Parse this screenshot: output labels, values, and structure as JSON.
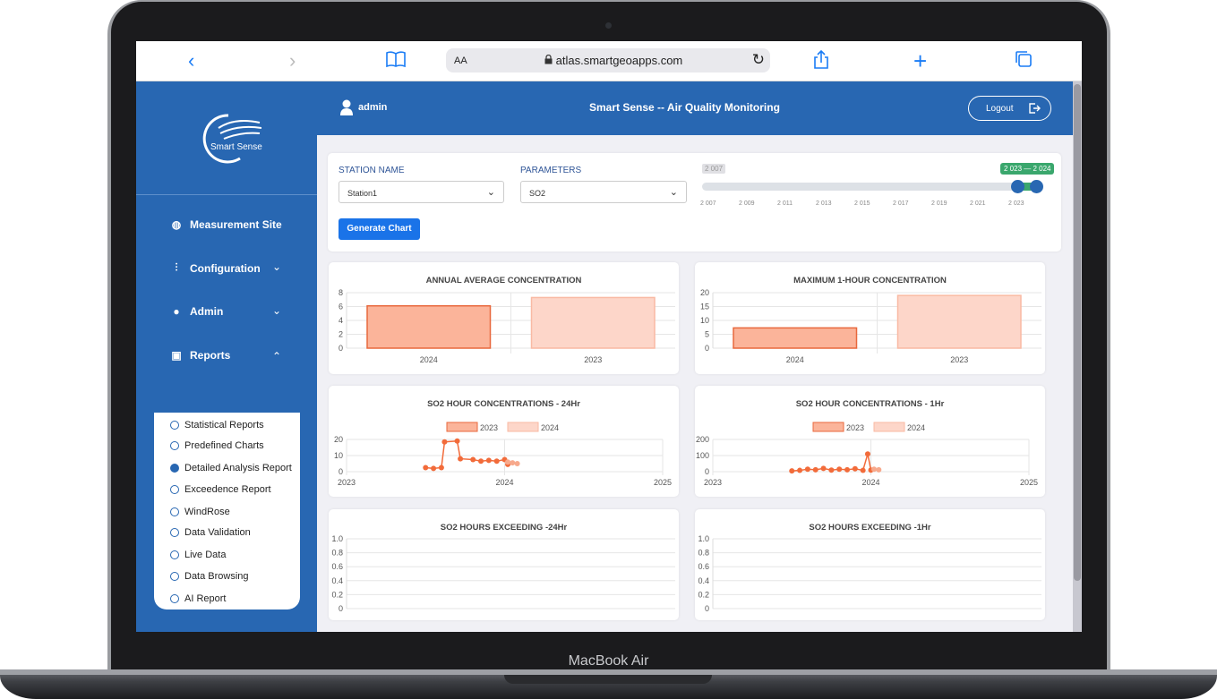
{
  "device": {
    "brand": "MacBook Air"
  },
  "browser": {
    "back": "‹",
    "forward": "›",
    "text_size": "AA",
    "url": "atlas.smartgeoapps.com",
    "icons": [
      "chevron-left-icon",
      "chevron-right-icon",
      "book-icon",
      "lock-icon",
      "reload-icon",
      "share-icon",
      "plus-icon",
      "tabs-icon"
    ]
  },
  "app": {
    "logo_text": "Smart Sense",
    "user": "admin",
    "title": "Smart Sense -- Air Quality Monitoring",
    "logout": "Logout",
    "colors": {
      "primary": "#2867b2",
      "button": "#1a73e8",
      "bar_2023": "#fbb49a",
      "bar_2024": "#fdd6c9",
      "line_2023": "#f26b3a",
      "range_badge": "#3aa76d"
    }
  },
  "sidebar": {
    "items": [
      {
        "label": "Measurement Site",
        "icon": "gauge-icon"
      },
      {
        "label": "Configuration",
        "icon": "sliders-icon"
      },
      {
        "label": "Admin",
        "icon": "user-icon"
      },
      {
        "label": "Reports",
        "icon": "report-icon"
      }
    ],
    "reports": [
      {
        "label": "Statistical Reports",
        "selected": false
      },
      {
        "label": "Predefined Charts",
        "selected": false
      },
      {
        "label": "Detailed Analysis Report",
        "selected": true
      },
      {
        "label": "Exceedence Report",
        "selected": false
      },
      {
        "label": "WindRose",
        "selected": false
      },
      {
        "label": "Data Validation",
        "selected": false
      },
      {
        "label": "Live Data",
        "selected": false
      },
      {
        "label": "Data Browsing",
        "selected": false
      },
      {
        "label": "AI Report",
        "selected": false
      }
    ]
  },
  "filters": {
    "station_label": "STATION NAME",
    "station_value": "Station1",
    "parameter_label": "PARAMETERS",
    "parameter_value": "SO2",
    "range_min_label": "2 007",
    "range_selected_label": "2 023 — 2 024",
    "range_selected": [
      2023,
      2024
    ],
    "range_ticks": [
      "2 007",
      "2 009",
      "2 011",
      "2 013",
      "2 015",
      "2 017",
      "2 019",
      "2 021",
      "2 023"
    ],
    "generate": "Generate Chart"
  },
  "charts": [
    {
      "title": "ANNUAL AVERAGE CONCENTRATION"
    },
    {
      "title": "MAXIMUM 1-HOUR CONCENTRATION"
    },
    {
      "title": "SO2 HOUR CONCENTRATIONS - 24Hr"
    },
    {
      "title": "SO2 HOUR CONCENTRATIONS - 1Hr"
    },
    {
      "title": "SO2 HOURS EXCEEDING -24Hr"
    },
    {
      "title": "SO2 HOURS EXCEEDING -1Hr"
    }
  ],
  "chart_data": [
    {
      "type": "bar",
      "categories": [
        "2024",
        "2023"
      ],
      "values": [
        6.1,
        7.3
      ],
      "ylim": [
        0,
        8
      ],
      "yticks": [
        "0",
        "2",
        "4",
        "6",
        "8"
      ]
    },
    {
      "type": "bar",
      "categories": [
        "2024",
        "2023"
      ],
      "values": [
        7.3,
        19
      ],
      "ylim": [
        0,
        20
      ],
      "yticks": [
        "0",
        "5",
        "10",
        "15",
        "20"
      ]
    },
    {
      "type": "line",
      "legend": [
        "2023",
        "2024"
      ],
      "xticks": [
        "2023",
        "2024",
        "2025"
      ],
      "xlim": [
        2023,
        2025
      ],
      "ylim": [
        0,
        20
      ],
      "yticks": [
        "0",
        "10",
        "20"
      ],
      "series": [
        {
          "name": "2023",
          "points": [
            [
              2023.5,
              2.5
            ],
            [
              2023.55,
              2
            ],
            [
              2023.6,
              2.5
            ],
            [
              2023.62,
              18.5
            ],
            [
              2023.7,
              19
            ],
            [
              2023.72,
              8
            ],
            [
              2023.8,
              7.5
            ],
            [
              2023.85,
              6.5
            ],
            [
              2023.9,
              7
            ],
            [
              2023.95,
              6.5
            ],
            [
              2024.0,
              7.5
            ],
            [
              2024.02,
              4.5
            ]
          ]
        },
        {
          "name": "2024",
          "points": [
            [
              2024.02,
              6
            ],
            [
              2024.05,
              5.5
            ],
            [
              2024.08,
              5
            ]
          ]
        }
      ]
    },
    {
      "type": "line",
      "legend": [
        "2023",
        "2024"
      ],
      "xticks": [
        "2023",
        "2024",
        "2025"
      ],
      "xlim": [
        2023,
        2025
      ],
      "ylim": [
        0,
        200
      ],
      "yticks": [
        "0",
        "100",
        "200"
      ],
      "series": [
        {
          "name": "2023",
          "points": [
            [
              2023.5,
              5
            ],
            [
              2023.55,
              8
            ],
            [
              2023.6,
              15
            ],
            [
              2023.65,
              12
            ],
            [
              2023.7,
              20
            ],
            [
              2023.75,
              10
            ],
            [
              2023.8,
              15
            ],
            [
              2023.85,
              12
            ],
            [
              2023.9,
              18
            ],
            [
              2023.95,
              8
            ],
            [
              2023.98,
              110
            ],
            [
              2024.0,
              10
            ]
          ]
        },
        {
          "name": "2024",
          "points": [
            [
              2024.02,
              15
            ],
            [
              2024.05,
              12
            ]
          ]
        }
      ]
    },
    {
      "type": "bar",
      "categories": [],
      "values": [],
      "ylim": [
        0,
        1
      ],
      "yticks": [
        "0",
        "0.2",
        "0.4",
        "0.6",
        "0.8",
        "1.0"
      ]
    },
    {
      "type": "bar",
      "categories": [],
      "values": [],
      "ylim": [
        0,
        1
      ],
      "yticks": [
        "0",
        "0.2",
        "0.4",
        "0.6",
        "0.8",
        "1.0"
      ]
    }
  ]
}
